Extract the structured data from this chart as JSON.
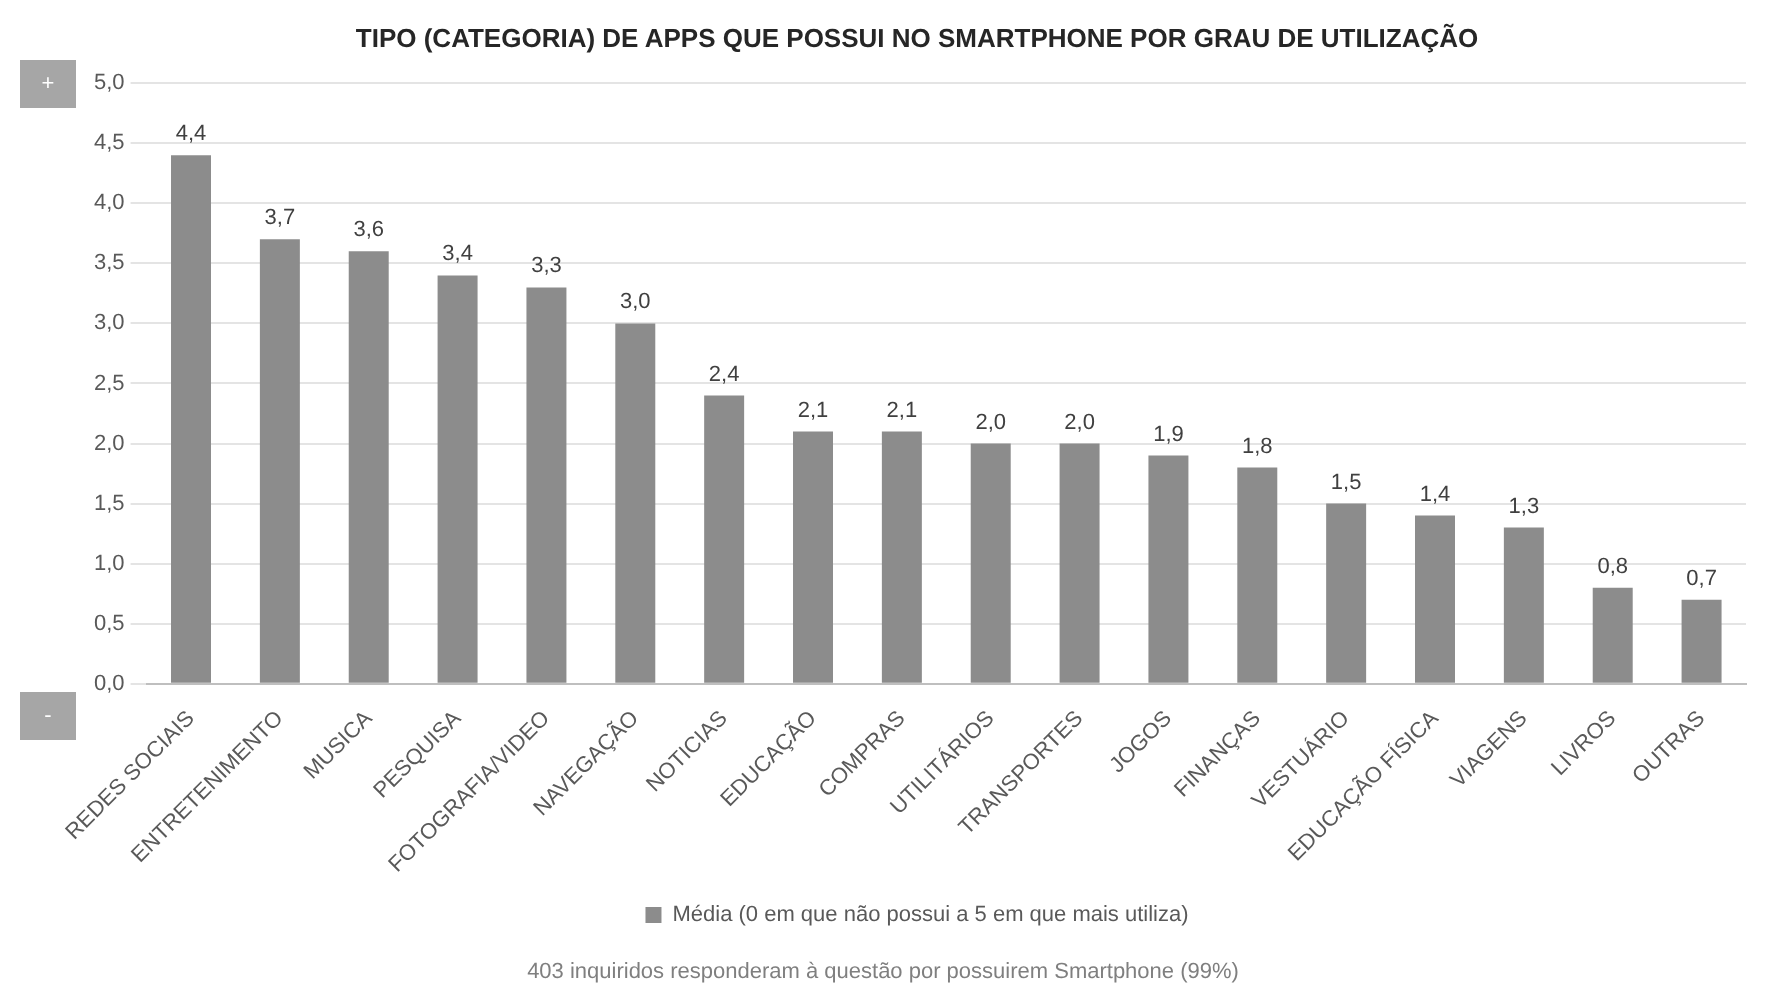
{
  "chart_data": {
    "type": "bar",
    "title": "TIPO (CATEGORIA) DE APPS QUE POSSUI NO SMARTPHONE POR GRAU DE UTILIZAÇÃO",
    "categories": [
      "REDES SOCIAIS",
      "ENTRETENIMENTO",
      "MUSICA",
      "PESQUISA",
      "FOTOGRAFIA/VIDEO",
      "NAVEGAÇÃO",
      "NOTICIAS",
      "EDUCAÇÃO",
      "COMPRAS",
      "UTILITÁRIOS",
      "TRANSPORTES",
      "JOGOS",
      "FINANÇAS",
      "VESTUÁRIO",
      "EDUCAÇÃO FÍSICA",
      "VIAGENS",
      "LIVROS",
      "OUTRAS"
    ],
    "series": [
      {
        "name": "Média (0 em que não possui a 5 em que mais utiliza)",
        "color": "#8c8c8c",
        "values": [
          4.4,
          3.7,
          3.6,
          3.4,
          3.3,
          3.0,
          2.4,
          2.1,
          2.1,
          2.0,
          2.0,
          1.9,
          1.8,
          1.5,
          1.4,
          1.3,
          0.8,
          0.7
        ],
        "value_labels": [
          "4,4",
          "3,7",
          "3,6",
          "3,4",
          "3,3",
          "3,0",
          "2,4",
          "2,1",
          "2,1",
          "2,0",
          "2,0",
          "1,9",
          "1,8",
          "1,5",
          "1,4",
          "1,3",
          "0,8",
          "0,7"
        ]
      }
    ],
    "ylim": [
      0,
      5
    ],
    "yticks": [
      {
        "value": 0,
        "label": "0,0"
      },
      {
        "value": 0.5,
        "label": "0,5"
      },
      {
        "value": 1,
        "label": "1,0"
      },
      {
        "value": 1.5,
        "label": "1,5"
      },
      {
        "value": 2,
        "label": "2,0"
      },
      {
        "value": 2.5,
        "label": "2,5"
      },
      {
        "value": 3,
        "label": "3,0"
      },
      {
        "value": 3.5,
        "label": "3,5"
      },
      {
        "value": 4,
        "label": "4,0"
      },
      {
        "value": 4.5,
        "label": "4,5"
      },
      {
        "value": 5,
        "label": "5,0"
      }
    ],
    "grid": "y",
    "legend": "bottom",
    "annotations": [
      "+",
      "-",
      "403 inquiridos responderam à questão por possuirem Smartphone (99%)"
    ]
  }
}
